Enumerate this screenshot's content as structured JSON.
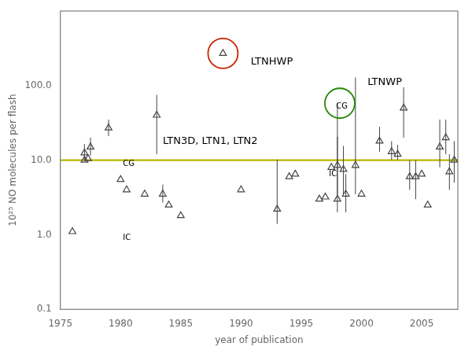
{
  "chart_data": {
    "type": "scatter",
    "xlabel": "year of publication",
    "ylabel": "10²⁵ NO molecules per flash",
    "log": "y",
    "grid": false,
    "xlim": [
      1975,
      2008
    ],
    "xticks": [
      1975,
      1980,
      1985,
      1990,
      1995,
      2000,
      2005
    ],
    "ylim": [
      0.1,
      1000
    ],
    "yticks": [
      0.1,
      {
        "value": 1.0,
        "label": "1.0"
      },
      {
        "value": 10.0,
        "label": "10.0"
      },
      {
        "value": 100.0,
        "label": "100.0"
      }
    ],
    "series": [
      {
        "marker": "triangle",
        "color": "#444444",
        "x": [
          1976.0,
          1977.3,
          1977.0,
          1977.5,
          1977.0,
          1979.0,
          1980.0,
          1980.5,
          1982.0,
          1983.0,
          1983.5,
          1984.0,
          1985.0,
          1990.0,
          1993.0,
          1994.0,
          1994.5,
          1996.5,
          1997.0,
          1997.5,
          1998.0,
          1998.5,
          1998.0,
          1998.7,
          1999.5,
          2000.0,
          2001.5,
          2002.5,
          2003.0,
          2003.5,
          2004.0,
          2004.5,
          2005.0,
          2005.5,
          2006.5,
          2007.0,
          2007.3,
          2007.7,
          1988.5
        ],
        "values": [
          1.1,
          10.5,
          10.0,
          15.0,
          12.5,
          27.0,
          5.5,
          4.0,
          3.5,
          40.0,
          3.5,
          2.5,
          1.8,
          4.0,
          2.2,
          6.0,
          6.5,
          3.0,
          3.2,
          8.0,
          8.5,
          7.5,
          3.0,
          3.5,
          8.5,
          3.5,
          18.0,
          13.0,
          12.0,
          50.0,
          6.0,
          6.0,
          6.5,
          2.5,
          15.0,
          20.0,
          7.0,
          10.0,
          270.0
        ],
        "yerr_lo": [
          null,
          null,
          null,
          3.5,
          2.5,
          6.0,
          null,
          null,
          null,
          28.0,
          0.8,
          null,
          null,
          null,
          0.8,
          null,
          null,
          null,
          null,
          null,
          5.0,
          4.0,
          1.0,
          1.5,
          5.0,
          null,
          5.0,
          3.0,
          2.0,
          30.0,
          2.0,
          3.0,
          null,
          null,
          7.0,
          8.0,
          3.0,
          5.0,
          null
        ],
        "yerr_hi": [
          null,
          null,
          null,
          5.0,
          4.0,
          8.0,
          null,
          null,
          null,
          35.0,
          1.2,
          null,
          null,
          null,
          8.0,
          null,
          null,
          null,
          null,
          null,
          12.0,
          8.0,
          55.0,
          3.0,
          120.0,
          null,
          10.0,
          5.0,
          4.0,
          45.0,
          4.0,
          4.0,
          null,
          null,
          20.0,
          15.0,
          5.0,
          8.0,
          null
        ]
      }
    ],
    "hlines": [
      {
        "y": 10.0,
        "color": "#b8b800"
      }
    ],
    "circles": [
      {
        "x": 1988.5,
        "y": 270.0,
        "color": "#cc2200"
      },
      {
        "x": 1998.2,
        "y": 58.0,
        "color": "#228800"
      }
    ],
    "annotations": [
      {
        "text": "LTNHWP",
        "x": 1990.8,
        "y": 210.0
      },
      {
        "text": "LTNWP",
        "x": 2000.5,
        "y": 110.0
      },
      {
        "text": "LTN3D, LTN1, LTN2",
        "x": 1983.5,
        "y": 18.0
      },
      {
        "text": "CG",
        "x": 1980.2,
        "y": 9.0
      },
      {
        "text": "IC",
        "x": 1980.2,
        "y": 0.9
      },
      {
        "text": "IC",
        "x": 1997.3,
        "y": 6.5
      },
      {
        "text": "CG",
        "x": 1997.9,
        "y": 52.0
      }
    ]
  }
}
